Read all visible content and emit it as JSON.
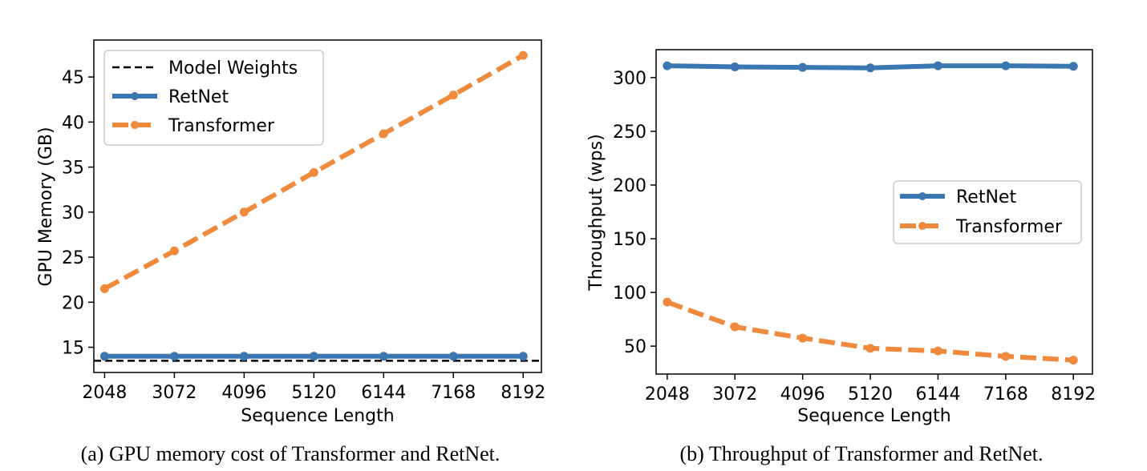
{
  "chart_data": [
    {
      "type": "line",
      "xlabel": "Sequence Length",
      "ylabel": "GPU Memory (GB)",
      "caption": "(a) GPU memory cost of Transformer and RetNet.",
      "x": [
        2048,
        3072,
        4096,
        5120,
        6144,
        7168,
        8192
      ],
      "x_tick_labels": [
        "2048",
        "3072",
        "4096",
        "5120",
        "6144",
        "7168",
        "8192"
      ],
      "xlim": [
        1890,
        8460
      ],
      "ylim": [
        12.2,
        49.1
      ],
      "y_ticks": [
        15,
        20,
        25,
        30,
        35,
        40,
        45
      ],
      "y_tick_labels": [
        "15",
        "20",
        "25",
        "30",
        "35",
        "40",
        "45"
      ],
      "hlines": [
        {
          "name": "Model Weights",
          "value": 13.5,
          "color": "#000000",
          "dash": "dashed"
        }
      ],
      "series": [
        {
          "name": "RetNet",
          "color": "#3a77b0",
          "dash": "solid",
          "values": [
            14.0,
            14.0,
            14.0,
            14.0,
            14.0,
            14.0,
            14.0
          ]
        },
        {
          "name": "Transformer",
          "color": "#ef8a3d",
          "dash": "dashed",
          "values": [
            21.5,
            25.7,
            30.0,
            34.4,
            38.7,
            43.0,
            47.4
          ]
        }
      ],
      "legend": {
        "placement": "top-left",
        "entries": [
          "Model Weights",
          "RetNet",
          "Transformer"
        ]
      },
      "grid": false
    },
    {
      "type": "line",
      "xlabel": "Sequence Length",
      "ylabel": "Throughput (wps)",
      "caption": "(b) Throughput of Transformer and RetNet.",
      "x": [
        2048,
        3072,
        4096,
        5120,
        6144,
        7168,
        8192
      ],
      "x_tick_labels": [
        "2048",
        "3072",
        "4096",
        "5120",
        "6144",
        "7168",
        "8192"
      ],
      "xlim": [
        1880,
        8480
      ],
      "ylim": [
        24,
        326
      ],
      "y_ticks": [
        50,
        100,
        150,
        200,
        250,
        300
      ],
      "y_tick_labels": [
        "50",
        "100",
        "150",
        "200",
        "250",
        "300"
      ],
      "hlines": [],
      "series": [
        {
          "name": "RetNet",
          "color": "#3a77b0",
          "dash": "solid",
          "values": [
            311,
            310,
            309.5,
            309,
            311,
            311,
            310.5
          ]
        },
        {
          "name": "Transformer",
          "color": "#ef8a3d",
          "dash": "dashed",
          "values": [
            91,
            68,
            57.5,
            48,
            45.5,
            40.5,
            37
          ]
        }
      ],
      "legend": {
        "placement": "center-right",
        "entries": [
          "RetNet",
          "Transformer"
        ]
      },
      "grid": false
    }
  ]
}
